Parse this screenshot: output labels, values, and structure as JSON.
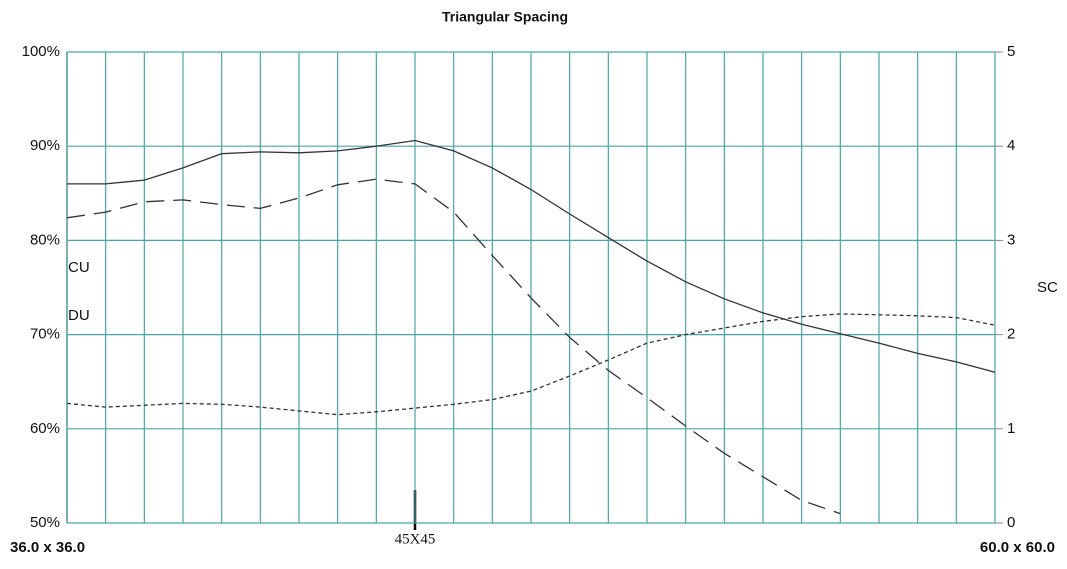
{
  "chart_data": {
    "type": "line",
    "title": "Triangular Spacing",
    "categories": [
      "36.0 x 36.0",
      null,
      null,
      null,
      null,
      null,
      null,
      null,
      null,
      "45X45",
      null,
      null,
      null,
      null,
      null,
      null,
      null,
      null,
      null,
      null,
      null,
      null,
      null,
      null,
      "60.0 x 60.0"
    ],
    "series": [
      {
        "name": "CU",
        "color": "#333333",
        "dash": "none",
        "values": [
          86.0,
          86.0,
          86.4,
          87.7,
          89.2,
          89.4,
          89.3,
          89.5,
          90.0,
          90.6,
          89.5,
          87.7,
          85.4,
          82.8,
          80.3,
          77.8,
          75.6,
          73.8,
          72.3,
          71.1,
          70.1,
          69.1,
          68.0,
          67.1,
          66.0
        ]
      },
      {
        "name": "DU",
        "color": "#333333",
        "dash": "long",
        "values": [
          82.4,
          83.0,
          84.1,
          84.3,
          83.8,
          83.4,
          84.5,
          85.9,
          86.5,
          86.0,
          83.0,
          78.4,
          73.9,
          69.7,
          66.2,
          63.3,
          60.3,
          57.4,
          54.9,
          52.4,
          51.0,
          null,
          null,
          null,
          null
        ]
      },
      {
        "name": "SC",
        "color": "#333333",
        "dash": "short",
        "axis": "y2",
        "values": [
          1.27,
          1.23,
          1.25,
          1.27,
          1.26,
          1.23,
          1.19,
          1.15,
          1.18,
          1.22,
          1.26,
          1.31,
          1.4,
          1.56,
          1.73,
          1.91,
          2.0,
          2.07,
          2.14,
          2.19,
          2.22,
          2.21,
          2.2,
          2.18,
          2.1
        ]
      }
    ],
    "ylim": [
      50,
      100
    ],
    "yticks": [
      {
        "value": 50,
        "label": "50%"
      },
      {
        "value": 60,
        "label": "60%"
      },
      {
        "value": 70,
        "label": "70%"
      },
      {
        "value": 80,
        "label": "80%"
      },
      {
        "value": 90,
        "label": "90%"
      },
      {
        "value": 100,
        "label": "100%"
      }
    ],
    "y2lim": [
      0,
      5
    ],
    "y2ticks": [
      0,
      1,
      2,
      3,
      4,
      5
    ],
    "grid": true
  }
}
